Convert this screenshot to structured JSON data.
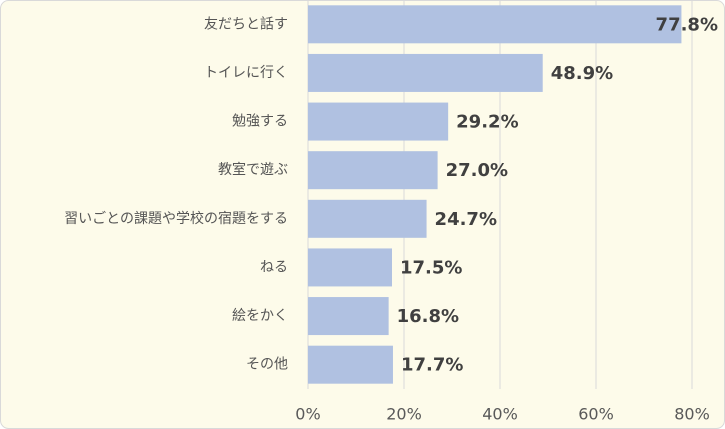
{
  "chart_data": {
    "type": "bar",
    "orientation": "horizontal",
    "categories": [
      "友だちと話す",
      "トイレに行く",
      "勉強する",
      "教室で遊ぶ",
      "習いごとの課題や学校の宿題をする",
      "ねる",
      "絵をかく",
      "その他"
    ],
    "values": [
      77.8,
      48.9,
      29.2,
      27.0,
      24.7,
      17.5,
      16.8,
      17.7
    ],
    "value_labels": [
      "77.8%",
      "48.9%",
      "29.2%",
      "27.0%",
      "24.7%",
      "17.5%",
      "16.8%",
      "17.7%"
    ],
    "color": "#b0c1e1",
    "xlim": [
      0,
      80
    ],
    "xticks": [
      {
        "value": 0,
        "label": "0%"
      },
      {
        "value": 20,
        "label": "20%"
      },
      {
        "value": 40,
        "label": "40%"
      },
      {
        "value": 60,
        "label": "60%"
      },
      {
        "value": 80,
        "label": "80%"
      }
    ],
    "grid": true
  }
}
